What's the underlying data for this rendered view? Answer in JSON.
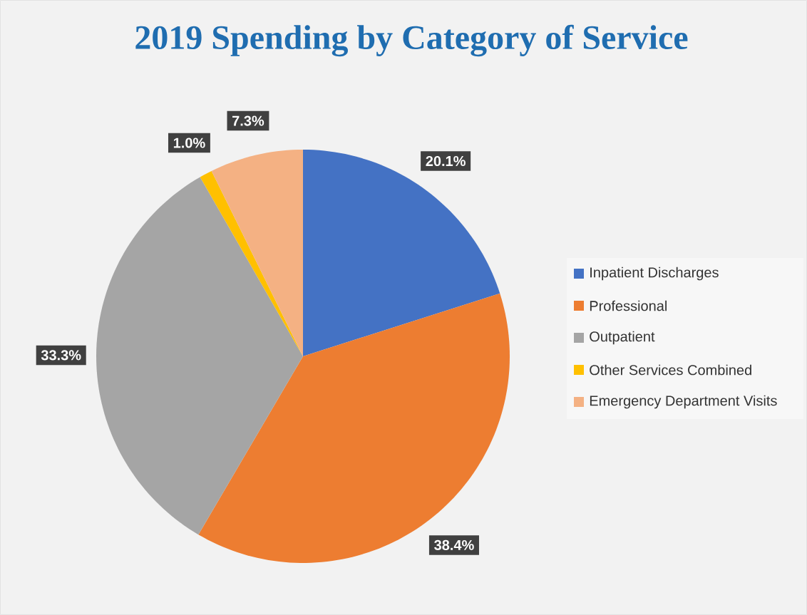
{
  "chart_data": {
    "type": "pie",
    "title": "2019 Spending by Category of Service",
    "categories": [
      "Inpatient Discharges",
      "Professional",
      "Outpatient",
      "Other Services Combined",
      "Emergency Department Visits"
    ],
    "values": [
      20.1,
      38.4,
      33.3,
      1.0,
      7.3
    ],
    "colors": [
      "#4472c4",
      "#ed7d31",
      "#a5a5a5",
      "#ffc000",
      "#f4b183"
    ],
    "value_labels": [
      "20.1%",
      "38.4%",
      "33.3%",
      "1.0%",
      "7.3%"
    ],
    "legend": "right"
  }
}
